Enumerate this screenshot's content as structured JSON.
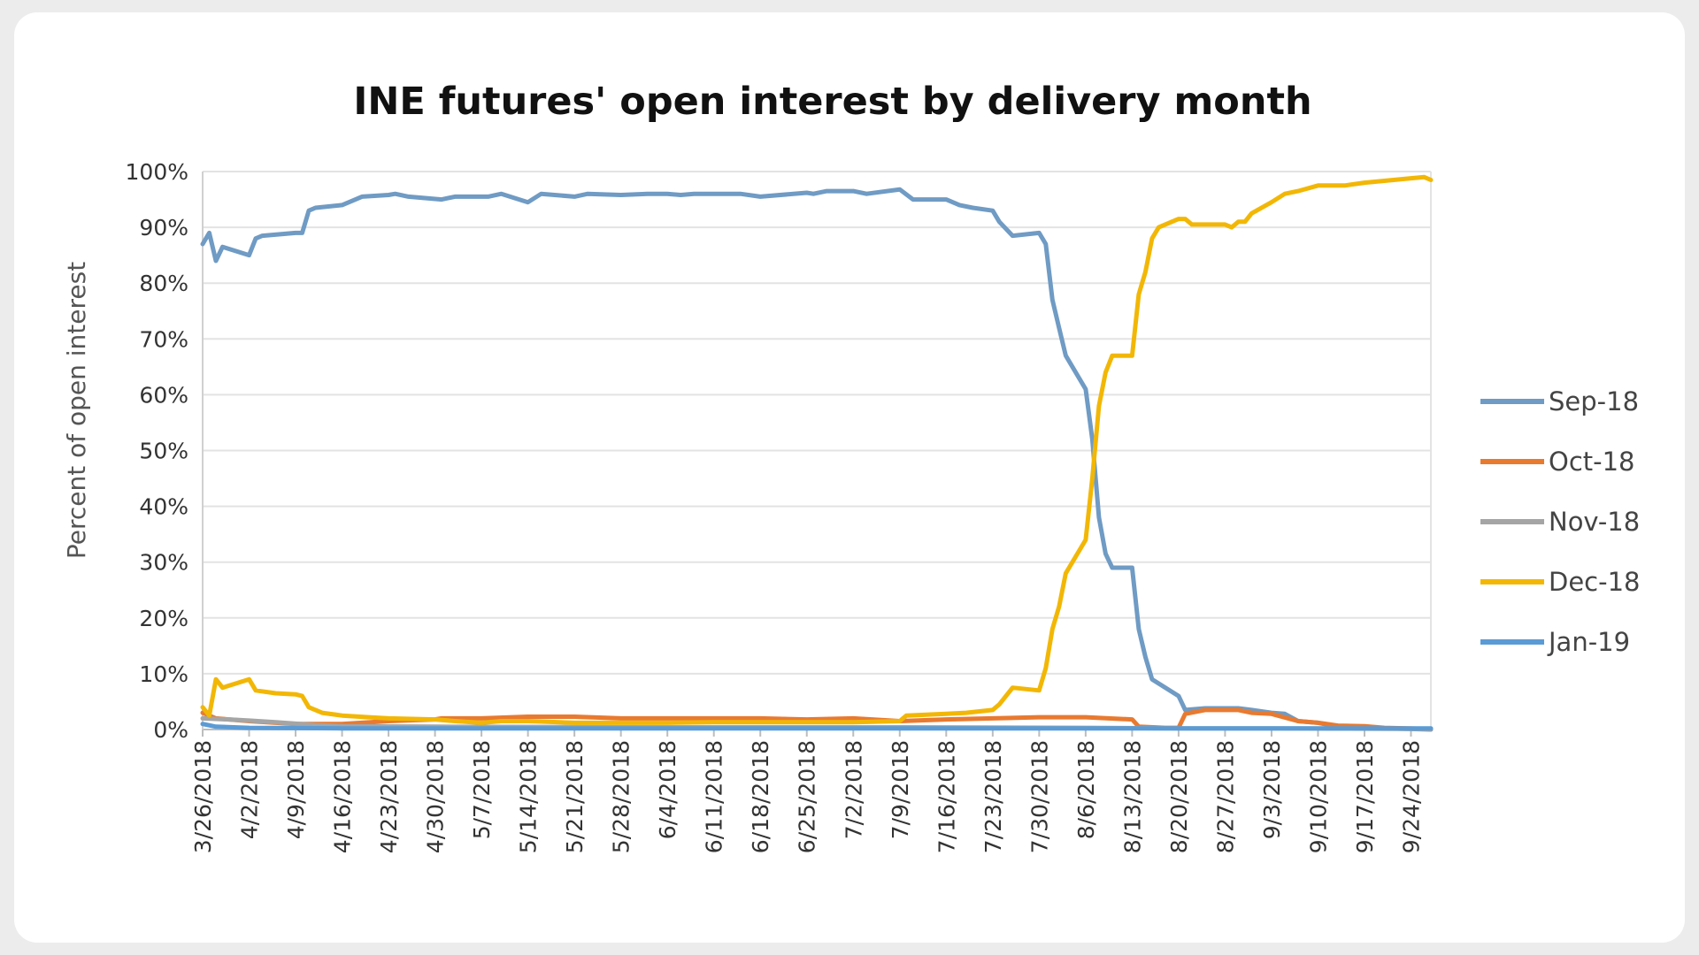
{
  "chart_data": {
    "type": "line",
    "title": "INE futures' open interest by delivery month",
    "xlabel": "",
    "ylabel": "Percent of open interest",
    "ylim": [
      0,
      100
    ],
    "y_ticks": [
      "0%",
      "10%",
      "20%",
      "30%",
      "40%",
      "50%",
      "60%",
      "70%",
      "80%",
      "90%",
      "100%"
    ],
    "x_ticks": [
      "3/26/2018",
      "4/2/2018",
      "4/9/2018",
      "4/16/2018",
      "4/23/2018",
      "4/30/2018",
      "5/7/2018",
      "5/14/2018",
      "5/21/2018",
      "5/28/2018",
      "6/4/2018",
      "6/11/2018",
      "6/18/2018",
      "6/25/2018",
      "7/2/2018",
      "7/9/2018",
      "7/16/2018",
      "7/23/2018",
      "7/30/2018",
      "8/6/2018",
      "8/13/2018",
      "8/20/2018",
      "8/27/2018",
      "9/3/2018",
      "9/10/2018",
      "9/17/2018",
      "9/24/2018"
    ],
    "xlim": [
      "3/26/2018",
      "9/27/2018"
    ],
    "grid": true,
    "legend_position": "right",
    "series": [
      {
        "name": "Sep-18",
        "color": "#6f9bc4",
        "points": [
          [
            "3/26/2018",
            87
          ],
          [
            "3/27/2018",
            89
          ],
          [
            "3/28/2018",
            84
          ],
          [
            "3/29/2018",
            86.5
          ],
          [
            "4/2/2018",
            85
          ],
          [
            "4/3/2018",
            88
          ],
          [
            "4/4/2018",
            88.5
          ],
          [
            "4/9/2018",
            89
          ],
          [
            "4/10/2018",
            89
          ],
          [
            "4/11/2018",
            93
          ],
          [
            "4/12/2018",
            93.5
          ],
          [
            "4/16/2018",
            94
          ],
          [
            "4/19/2018",
            95.5
          ],
          [
            "4/23/2018",
            95.8
          ],
          [
            "4/24/2018",
            96
          ],
          [
            "4/26/2018",
            95.5
          ],
          [
            "5/1/2018",
            95
          ],
          [
            "5/3/2018",
            95.5
          ],
          [
            "5/8/2018",
            95.5
          ],
          [
            "5/10/2018",
            96
          ],
          [
            "5/14/2018",
            94.5
          ],
          [
            "5/16/2018",
            96
          ],
          [
            "5/21/2018",
            95.5
          ],
          [
            "5/23/2018",
            96
          ],
          [
            "5/28/2018",
            95.8
          ],
          [
            "6/1/2018",
            96
          ],
          [
            "6/4/2018",
            96
          ],
          [
            "6/6/2018",
            95.8
          ],
          [
            "6/8/2018",
            96
          ],
          [
            "6/15/2018",
            96
          ],
          [
            "6/18/2018",
            95.5
          ],
          [
            "6/25/2018",
            96.2
          ],
          [
            "6/26/2018",
            96
          ],
          [
            "6/28/2018",
            96.5
          ],
          [
            "7/2/2018",
            96.5
          ],
          [
            "7/4/2018",
            96
          ],
          [
            "7/9/2018",
            96.8
          ],
          [
            "7/11/2018",
            95
          ],
          [
            "7/13/2018",
            95
          ],
          [
            "7/16/2018",
            95
          ],
          [
            "7/18/2018",
            94
          ],
          [
            "7/20/2018",
            93.5
          ],
          [
            "7/23/2018",
            93
          ],
          [
            "7/24/2018",
            91
          ],
          [
            "7/26/2018",
            88.5
          ],
          [
            "7/30/2018",
            89
          ],
          [
            "7/31/2018",
            87
          ],
          [
            "8/1/2018",
            77
          ],
          [
            "8/2/2018",
            72
          ],
          [
            "8/3/2018",
            67
          ],
          [
            "8/6/2018",
            61
          ],
          [
            "8/7/2018",
            52
          ],
          [
            "8/8/2018",
            38
          ],
          [
            "8/9/2018",
            31.5
          ],
          [
            "8/10/2018",
            29
          ],
          [
            "8/13/2018",
            29
          ],
          [
            "8/14/2018",
            18
          ],
          [
            "8/15/2018",
            13
          ],
          [
            "8/16/2018",
            9
          ],
          [
            "8/20/2018",
            6
          ],
          [
            "8/21/2018",
            3.5
          ],
          [
            "8/24/2018",
            3.8
          ],
          [
            "8/29/2018",
            3.8
          ],
          [
            "8/31/2018",
            3.5
          ],
          [
            "9/3/2018",
            3
          ],
          [
            "9/5/2018",
            2.8
          ],
          [
            "9/7/2018",
            1.5
          ],
          [
            "9/10/2018",
            1.2
          ],
          [
            "9/13/2018",
            0.5
          ],
          [
            "9/17/2018",
            0.3
          ],
          [
            "9/24/2018",
            0.1
          ],
          [
            "9/27/2018",
            0
          ]
        ]
      },
      {
        "name": "Oct-18",
        "color": "#e87a30",
        "points": [
          [
            "3/26/2018",
            3
          ],
          [
            "3/28/2018",
            2
          ],
          [
            "4/2/2018",
            1.5
          ],
          [
            "4/9/2018",
            1
          ],
          [
            "4/16/2018",
            1
          ],
          [
            "4/23/2018",
            1.5
          ],
          [
            "4/30/2018",
            1.8
          ],
          [
            "5/1/2018",
            2
          ],
          [
            "5/7/2018",
            2
          ],
          [
            "5/14/2018",
            2.3
          ],
          [
            "5/21/2018",
            2.3
          ],
          [
            "5/28/2018",
            2
          ],
          [
            "6/4/2018",
            2
          ],
          [
            "6/11/2018",
            2
          ],
          [
            "6/18/2018",
            2
          ],
          [
            "6/25/2018",
            1.8
          ],
          [
            "7/2/2018",
            2
          ],
          [
            "7/9/2018",
            1.5
          ],
          [
            "7/16/2018",
            1.8
          ],
          [
            "7/23/2018",
            2
          ],
          [
            "7/30/2018",
            2.2
          ],
          [
            "8/6/2018",
            2.2
          ],
          [
            "8/13/2018",
            1.8
          ],
          [
            "8/14/2018",
            0.5
          ],
          [
            "8/18/2018",
            0.3
          ],
          [
            "8/20/2018",
            0.3
          ],
          [
            "8/21/2018",
            2.8
          ],
          [
            "8/24/2018",
            3.5
          ],
          [
            "8/29/2018",
            3.5
          ],
          [
            "8/31/2018",
            3
          ],
          [
            "9/3/2018",
            2.8
          ],
          [
            "9/7/2018",
            1.5
          ],
          [
            "9/10/2018",
            1.2
          ],
          [
            "9/13/2018",
            0.7
          ],
          [
            "9/17/2018",
            0.6
          ],
          [
            "9/20/2018",
            0.3
          ],
          [
            "9/27/2018",
            0.1
          ]
        ]
      },
      {
        "name": "Nov-18",
        "color": "#a5a5a5",
        "points": [
          [
            "3/26/2018",
            2
          ],
          [
            "3/30/2018",
            1.8
          ],
          [
            "4/2/2018",
            1.6
          ],
          [
            "4/6/2018",
            1.3
          ],
          [
            "4/12/2018",
            0.8
          ],
          [
            "4/16/2018",
            0.6
          ],
          [
            "4/30/2018",
            0.5
          ],
          [
            "6/4/2018",
            0.4
          ],
          [
            "7/9/2018",
            0.4
          ],
          [
            "8/6/2018",
            0.3
          ],
          [
            "8/20/2018",
            0.2
          ],
          [
            "9/3/2018",
            0.2
          ],
          [
            "9/27/2018",
            0.1
          ]
        ]
      },
      {
        "name": "Dec-18",
        "color": "#f2b705",
        "points": [
          [
            "3/26/2018",
            4
          ],
          [
            "3/27/2018",
            2.5
          ],
          [
            "3/28/2018",
            9
          ],
          [
            "3/29/2018",
            7.5
          ],
          [
            "4/2/2018",
            9
          ],
          [
            "4/3/2018",
            7
          ],
          [
            "4/6/2018",
            6.5
          ],
          [
            "4/9/2018",
            6.3
          ],
          [
            "4/10/2018",
            6
          ],
          [
            "4/11/2018",
            4
          ],
          [
            "4/13/2018",
            3
          ],
          [
            "4/16/2018",
            2.5
          ],
          [
            "4/20/2018",
            2.2
          ],
          [
            "4/23/2018",
            2
          ],
          [
            "4/30/2018",
            1.8
          ],
          [
            "5/3/2018",
            1.5
          ],
          [
            "5/7/2018",
            1.2
          ],
          [
            "5/10/2018",
            1.5
          ],
          [
            "5/14/2018",
            1.5
          ],
          [
            "5/21/2018",
            1.2
          ],
          [
            "6/4/2018",
            1.2
          ],
          [
            "6/11/2018",
            1.3
          ],
          [
            "6/18/2018",
            1.3
          ],
          [
            "6/25/2018",
            1.3
          ],
          [
            "7/2/2018",
            1.3
          ],
          [
            "7/9/2018",
            1.5
          ],
          [
            "7/10/2018",
            2.5
          ],
          [
            "7/16/2018",
            2.8
          ],
          [
            "7/19/2018",
            3
          ],
          [
            "7/23/2018",
            3.5
          ],
          [
            "7/24/2018",
            4.5
          ],
          [
            "7/26/2018",
            7.5
          ],
          [
            "7/30/2018",
            7
          ],
          [
            "7/31/2018",
            11
          ],
          [
            "8/1/2018",
            18
          ],
          [
            "8/2/2018",
            22
          ],
          [
            "8/3/2018",
            28
          ],
          [
            "8/6/2018",
            34
          ],
          [
            "8/7/2018",
            45
          ],
          [
            "8/8/2018",
            58
          ],
          [
            "8/9/2018",
            64
          ],
          [
            "8/10/2018",
            67
          ],
          [
            "8/13/2018",
            67
          ],
          [
            "8/14/2018",
            78
          ],
          [
            "8/15/2018",
            82
          ],
          [
            "8/16/2018",
            88
          ],
          [
            "8/17/2018",
            90
          ],
          [
            "8/20/2018",
            91.5
          ],
          [
            "8/21/2018",
            91.5
          ],
          [
            "8/22/2018",
            90.5
          ],
          [
            "8/27/2018",
            90.5
          ],
          [
            "8/28/2018",
            90
          ],
          [
            "8/29/2018",
            91
          ],
          [
            "8/30/2018",
            91
          ],
          [
            "8/31/2018",
            92.5
          ],
          [
            "9/3/2018",
            94.5
          ],
          [
            "9/5/2018",
            96
          ],
          [
            "9/7/2018",
            96.5
          ],
          [
            "9/10/2018",
            97.5
          ],
          [
            "9/14/2018",
            97.5
          ],
          [
            "9/17/2018",
            98
          ],
          [
            "9/24/2018",
            98.8
          ],
          [
            "9/26/2018",
            99
          ],
          [
            "9/27/2018",
            98.5
          ]
        ]
      },
      {
        "name": "Jan-19",
        "color": "#5b9bd5",
        "points": [
          [
            "3/26/2018",
            1
          ],
          [
            "3/28/2018",
            0.5
          ],
          [
            "4/2/2018",
            0.3
          ],
          [
            "4/16/2018",
            0.2
          ],
          [
            "6/4/2018",
            0.2
          ],
          [
            "8/6/2018",
            0.2
          ],
          [
            "9/3/2018",
            0.2
          ],
          [
            "9/27/2018",
            0.2
          ]
        ]
      }
    ]
  }
}
